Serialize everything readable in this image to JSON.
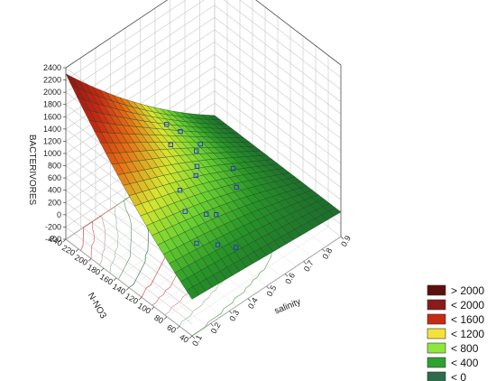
{
  "chart_data": {
    "type": "surface3d",
    "zlabel": "BACTERIVORES",
    "xlabel": "salinity",
    "ylabel": "N-NO3",
    "z_ticks": [
      "2400",
      "2200",
      "2000",
      "1800",
      "1600",
      "1400",
      "1200",
      "1000",
      "800",
      "600",
      "400",
      "200",
      "0",
      "-200",
      "-400"
    ],
    "zlim": [
      -400,
      2400
    ],
    "x_ticks": [
      "0.1",
      "0.2",
      "0.3",
      "0.4",
      "0.5",
      "0.6",
      "0.7",
      "0.8",
      "0.9"
    ],
    "xlim": [
      0.1,
      0.9
    ],
    "y_ticks": [
      "240",
      "220",
      "200",
      "180",
      "160",
      "140",
      "120",
      "100",
      "80",
      "60",
      "40"
    ],
    "ylim": [
      40,
      240
    ],
    "surface_corners": [
      {
        "salinity": 0.1,
        "n_no3": 240,
        "bacterivores": 2300
      },
      {
        "salinity": 0.1,
        "n_no3": 40,
        "bacterivores": 200
      },
      {
        "salinity": 0.9,
        "n_no3": 240,
        "bacterivores": 0
      },
      {
        "salinity": 0.9,
        "n_no3": 40,
        "bacterivores": 0
      }
    ],
    "legend": {
      "position": "bottom-right",
      "items": [
        {
          "label": "> 2000",
          "color": "#5c0f0f"
        },
        {
          "label": "< 2000",
          "color": "#8b1a1a"
        },
        {
          "label": "< 1600",
          "color": "#c62a12"
        },
        {
          "label": "< 1200",
          "color": "#f2e23c"
        },
        {
          "label": "< 800",
          "color": "#8ce83c"
        },
        {
          "label": "< 400",
          "color": "#2ea22e"
        },
        {
          "label": "< 0",
          "color": "#2e6b4a"
        }
      ]
    }
  }
}
